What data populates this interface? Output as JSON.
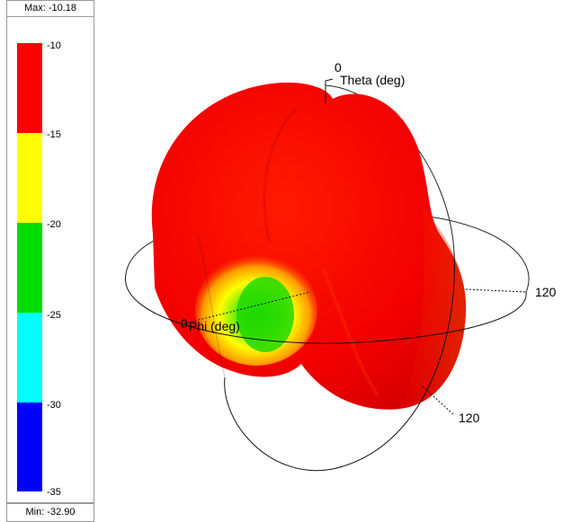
{
  "legend": {
    "max_label": "Max: -10.18",
    "min_label": "Min: -32.90",
    "ticks": [
      "-10",
      "-15",
      "-20",
      "-25",
      "-30",
      "-35"
    ],
    "colors": [
      "#ff0000",
      "#ffff00",
      "#00dd00",
      "#00ffff",
      "#0000ff"
    ]
  },
  "axes": {
    "theta_label": "Theta (deg)",
    "theta_zero": "0",
    "phi_label": "Phi (deg)",
    "phi_zero": "0",
    "ring_label_right": "120",
    "ring_label_bottom": "120"
  }
}
